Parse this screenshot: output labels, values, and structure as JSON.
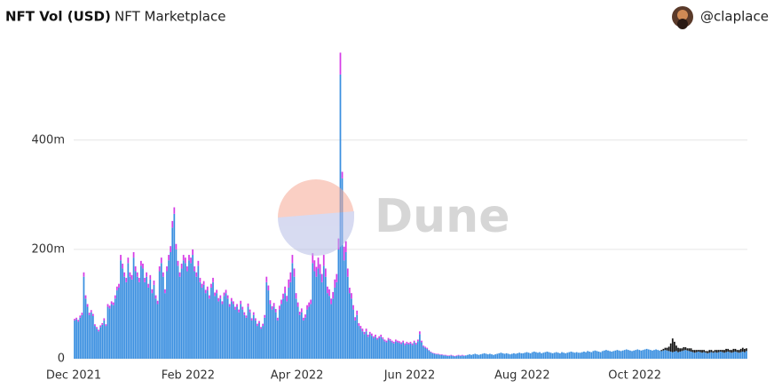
{
  "header": {
    "title": "NFT Vol (USD)",
    "subtitle": "NFT Marketplace",
    "user": "@claplace"
  },
  "chart_data": {
    "type": "bar",
    "stacked": true,
    "watermark": "Dune",
    "grid": true,
    "x": [
      0,
      1,
      2,
      3,
      4,
      5,
      6,
      7,
      8,
      9,
      10,
      11,
      12,
      13,
      14,
      15,
      16,
      17,
      18,
      19,
      20,
      21,
      22,
      23,
      24,
      25,
      26,
      27,
      28,
      29,
      30,
      31,
      32,
      33,
      34,
      35,
      36,
      37,
      38,
      39,
      40,
      41,
      42,
      43,
      44,
      45,
      46,
      47,
      48,
      49,
      50,
      51,
      52,
      53,
      54,
      55,
      56,
      57,
      58,
      59,
      60,
      61,
      62,
      63,
      64,
      65,
      66,
      67,
      68,
      69,
      70,
      71,
      72,
      73,
      74,
      75,
      76,
      77,
      78,
      79,
      80,
      81,
      82,
      83,
      84,
      85,
      86,
      87,
      88,
      89,
      90,
      91,
      92,
      93,
      94,
      95,
      96,
      97,
      98,
      99,
      100,
      101,
      102,
      103,
      104,
      105,
      106,
      107,
      108,
      109,
      110,
      111,
      112,
      113,
      114,
      115,
      116,
      117,
      118,
      119,
      120,
      121,
      122,
      123,
      124,
      125,
      126,
      127,
      128,
      129,
      130,
      131,
      132,
      133,
      134,
      135,
      136,
      137,
      138,
      139,
      140,
      141,
      142,
      143,
      144,
      145,
      146,
      147,
      148,
      149,
      150,
      151,
      152,
      153,
      154,
      155,
      156,
      157,
      158,
      159,
      160,
      161,
      162,
      163,
      164,
      165,
      166,
      167,
      168,
      169,
      170,
      171,
      172,
      173,
      174,
      175,
      176,
      177,
      178,
      179,
      180,
      181,
      182,
      183,
      184,
      185,
      186,
      187,
      188,
      189,
      190,
      191,
      192,
      193,
      194,
      195,
      196,
      197,
      198,
      199,
      200,
      201,
      202,
      203,
      204,
      205,
      206,
      207,
      208,
      209,
      210,
      211,
      212,
      213,
      214,
      215,
      216,
      217,
      218,
      219,
      220,
      221,
      222,
      223,
      224,
      225,
      226,
      227,
      228,
      229,
      230,
      231,
      232,
      233,
      234,
      235,
      236,
      237,
      238,
      239,
      240,
      241,
      242,
      243,
      244,
      245,
      246,
      247,
      248,
      249,
      250,
      251,
      252,
      253,
      254,
      255,
      256,
      257,
      258,
      259,
      260,
      261,
      262,
      263,
      264,
      265,
      266,
      267,
      268,
      269,
      270,
      271,
      272,
      273,
      274,
      275,
      276,
      277,
      278,
      279,
      280,
      281,
      282,
      283,
      284,
      285,
      286,
      287,
      288,
      289,
      290,
      291,
      292,
      293,
      294,
      295,
      296,
      297,
      298,
      299,
      300,
      301,
      302,
      303,
      304,
      305,
      306,
      307,
      308,
      309,
      310,
      311,
      312,
      313,
      314,
      315,
      316,
      317,
      318,
      319,
      320,
      321,
      322,
      323,
      324,
      325,
      326,
      327,
      328,
      329,
      330,
      331,
      332,
      333,
      334,
      335,
      336,
      337,
      338,
      339,
      340,
      341,
      342,
      343,
      344,
      345,
      346,
      347,
      348,
      349,
      350,
      351,
      352,
      353,
      354,
      355,
      356,
      357,
      358,
      359,
      360,
      361,
      362,
      363,
      364
    ],
    "xlim": [
      0,
      365
    ],
    "xticks": [
      {
        "value": 0,
        "label": "Dec 2021"
      },
      {
        "value": 62,
        "label": "Feb 2022"
      },
      {
        "value": 121,
        "label": "Apr 2022"
      },
      {
        "value": 182,
        "label": "Jun 2022"
      },
      {
        "value": 243,
        "label": "Aug 2022"
      },
      {
        "value": 304,
        "label": "Oct 2022"
      }
    ],
    "ylim": [
      0,
      580
    ],
    "yticks": [
      0,
      {
        "value": 200,
        "label": "200m"
      },
      {
        "value": 400,
        "label": "400m"
      }
    ],
    "series": [
      {
        "color": "#3a8fe0",
        "values": [
          70,
          72,
          68,
          75,
          80,
          150,
          110,
          95,
          80,
          85,
          78,
          60,
          55,
          50,
          58,
          62,
          70,
          60,
          95,
          92,
          100,
          98,
          110,
          125,
          130,
          180,
          165,
          150,
          140,
          175,
          150,
          145,
          185,
          160,
          150,
          140,
          170,
          165,
          140,
          150,
          130,
          145,
          120,
          135,
          110,
          100,
          160,
          175,
          150,
          120,
          160,
          180,
          195,
          240,
          265,
          200,
          170,
          150,
          165,
          180,
          175,
          160,
          180,
          175,
          190,
          160,
          150,
          170,
          140,
          130,
          135,
          120,
          125,
          110,
          130,
          140,
          115,
          120,
          105,
          110,
          100,
          115,
          120,
          110,
          95,
          105,
          100,
          90,
          95,
          85,
          100,
          90,
          80,
          75,
          95,
          85,
          70,
          80,
          70,
          60,
          65,
          55,
          60,
          75,
          140,
          125,
          100,
          90,
          95,
          85,
          70,
          90,
          100,
          110,
          120,
          105,
          130,
          140,
          175,
          150,
          110,
          95,
          80,
          85,
          70,
          75,
          90,
          95,
          100,
          175,
          160,
          150,
          165,
          155,
          140,
          170,
          150,
          120,
          115,
          100,
          110,
          130,
          140,
          200,
          520,
          330,
          180,
          195,
          150,
          120,
          110,
          90,
          70,
          80,
          60,
          55,
          50,
          45,
          50,
          40,
          45,
          42,
          38,
          40,
          35,
          38,
          40,
          36,
          32,
          30,
          35,
          33,
          30,
          28,
          32,
          30,
          29,
          27,
          30,
          25,
          28,
          26,
          28,
          25,
          30,
          26,
          32,
          45,
          30,
          22,
          20,
          18,
          15,
          12,
          10,
          9,
          8,
          8,
          7,
          7,
          6,
          6,
          5,
          5,
          6,
          5,
          4,
          5,
          6,
          5,
          6,
          5,
          6,
          7,
          8,
          7,
          8,
          9,
          8,
          7,
          8,
          9,
          10,
          9,
          8,
          9,
          8,
          7,
          8,
          9,
          10,
          11,
          10,
          9,
          10,
          9,
          8,
          9,
          10,
          9,
          10,
          11,
          10,
          10,
          11,
          12,
          11,
          10,
          12,
          13,
          12,
          11,
          12,
          10,
          11,
          12,
          13,
          12,
          11,
          10,
          11,
          12,
          11,
          10,
          12,
          11,
          10,
          11,
          12,
          13,
          12,
          11,
          12,
          11,
          11,
          12,
          13,
          12,
          14,
          13,
          12,
          14,
          15,
          14,
          13,
          12,
          14,
          15,
          16,
          15,
          14,
          13,
          14,
          15,
          16,
          15,
          14,
          15,
          16,
          17,
          16,
          15,
          14,
          15,
          16,
          17,
          16,
          15,
          16,
          17,
          18,
          17,
          16,
          15,
          16,
          17,
          16,
          15,
          14,
          15,
          16,
          15,
          14,
          13,
          12,
          13,
          14,
          12,
          13,
          14,
          15,
          16,
          15,
          14,
          13,
          12,
          11,
          12,
          13,
          12,
          11,
          12,
          11,
          10,
          11,
          12,
          11,
          12,
          11,
          12,
          13,
          12,
          11,
          12,
          13,
          12,
          11,
          12,
          13,
          12,
          11,
          12,
          13,
          12,
          14
        ]
      },
      {
        "color": "#d63ce6",
        "values": [
          3,
          3,
          3,
          4,
          4,
          8,
          6,
          5,
          4,
          4,
          4,
          3,
          3,
          3,
          3,
          3,
          4,
          3,
          5,
          5,
          5,
          5,
          6,
          7,
          7,
          10,
          9,
          8,
          8,
          10,
          8,
          8,
          10,
          9,
          8,
          8,
          9,
          9,
          8,
          8,
          7,
          8,
          7,
          8,
          6,
          6,
          9,
          10,
          8,
          7,
          9,
          10,
          11,
          12,
          12,
          10,
          9,
          8,
          9,
          10,
          10,
          9,
          10,
          10,
          10,
          9,
          8,
          9,
          8,
          7,
          7,
          6,
          7,
          6,
          7,
          8,
          6,
          6,
          6,
          6,
          5,
          6,
          6,
          6,
          5,
          6,
          5,
          5,
          5,
          5,
          6,
          5,
          5,
          4,
          6,
          5,
          4,
          5,
          4,
          4,
          4,
          3,
          4,
          5,
          10,
          9,
          7,
          6,
          7,
          6,
          5,
          7,
          8,
          9,
          12,
          10,
          15,
          18,
          15,
          15,
          10,
          8,
          6,
          7,
          5,
          6,
          8,
          8,
          8,
          18,
          20,
          18,
          20,
          18,
          15,
          20,
          15,
          12,
          12,
          10,
          12,
          15,
          15,
          20,
          40,
          12,
          25,
          20,
          15,
          10,
          10,
          8,
          6,
          8,
          5,
          5,
          5,
          4,
          5,
          4,
          4,
          4,
          3,
          4,
          3,
          3,
          4,
          3,
          3,
          3,
          3,
          3,
          3,
          3,
          3,
          3,
          3,
          3,
          3,
          3,
          3,
          3,
          3,
          3,
          3,
          3,
          3,
          5,
          3,
          2,
          2,
          2,
          1,
          1,
          1,
          1,
          1,
          1,
          1,
          1,
          1,
          1,
          1,
          1,
          1,
          1,
          1,
          1,
          1,
          1,
          1,
          1,
          0,
          0,
          0,
          0,
          0,
          0,
          0,
          0,
          0,
          0,
          0,
          0,
          0,
          0,
          0,
          0,
          0,
          0,
          0,
          0,
          0,
          0,
          0,
          0,
          0,
          0,
          0,
          0,
          0,
          0,
          0,
          0,
          0,
          0,
          0,
          0,
          0,
          0,
          0,
          0,
          0,
          0,
          0,
          0,
          0,
          0,
          0,
          0,
          0,
          0,
          0,
          0,
          0,
          0,
          0,
          0,
          0,
          0,
          0,
          0,
          0,
          0,
          0,
          0,
          0,
          0,
          0,
          0,
          0,
          0,
          0,
          0,
          0,
          0,
          0,
          0,
          0,
          0,
          0,
          0,
          0,
          0,
          0,
          0,
          0,
          0,
          0,
          0,
          0,
          0,
          0,
          0,
          0,
          0,
          0,
          0,
          0,
          0,
          0,
          0,
          0,
          0,
          0,
          0,
          0,
          0,
          0,
          0,
          0,
          0,
          0,
          0,
          0,
          0,
          0,
          0,
          0,
          0,
          0,
          0,
          0,
          0,
          0,
          0,
          0,
          0,
          0,
          0,
          0,
          0,
          0,
          0,
          0,
          0,
          0,
          0,
          0,
          0,
          0,
          0,
          0,
          0,
          0,
          0,
          0,
          0,
          0,
          0,
          0,
          0,
          0,
          0,
          0
        ]
      },
      {
        "color": "#151515",
        "values": [
          0,
          0,
          0,
          0,
          0,
          0,
          0,
          0,
          0,
          0,
          0,
          0,
          0,
          0,
          0,
          0,
          0,
          0,
          0,
          0,
          0,
          0,
          0,
          0,
          0,
          0,
          0,
          0,
          0,
          0,
          0,
          0,
          0,
          0,
          0,
          0,
          0,
          0,
          0,
          0,
          0,
          0,
          0,
          0,
          0,
          0,
          0,
          0,
          0,
          0,
          0,
          0,
          0,
          0,
          0,
          0,
          0,
          0,
          0,
          0,
          0,
          0,
          0,
          0,
          0,
          0,
          0,
          0,
          0,
          0,
          0,
          0,
          0,
          0,
          0,
          0,
          0,
          0,
          0,
          0,
          0,
          0,
          0,
          0,
          0,
          0,
          0,
          0,
          0,
          0,
          0,
          0,
          0,
          0,
          0,
          0,
          0,
          0,
          0,
          0,
          0,
          0,
          0,
          0,
          0,
          0,
          0,
          0,
          0,
          0,
          0,
          0,
          0,
          0,
          0,
          0,
          0,
          0,
          0,
          0,
          0,
          0,
          0,
          0,
          0,
          0,
          0,
          0,
          0,
          0,
          0,
          0,
          0,
          0,
          0,
          0,
          0,
          0,
          0,
          0,
          0,
          0,
          0,
          0,
          0,
          0,
          0,
          0,
          0,
          0,
          0,
          0,
          0,
          0,
          0,
          0,
          0,
          0,
          0,
          0,
          0,
          0,
          0,
          0,
          0,
          0,
          0,
          0,
          0,
          0,
          0,
          0,
          0,
          0,
          0,
          0,
          0,
          0,
          0,
          0,
          0,
          0,
          0,
          0,
          0,
          0,
          0,
          0,
          0,
          0,
          0,
          0,
          0,
          0,
          0,
          0,
          0,
          0,
          0,
          0,
          0,
          0,
          0,
          0,
          0,
          0,
          0,
          0,
          0,
          0,
          0,
          0,
          0,
          0,
          0,
          0,
          0,
          0,
          0,
          0,
          0,
          0,
          0,
          0,
          0,
          0,
          0,
          0,
          0,
          0,
          0,
          0,
          0,
          0,
          0,
          0,
          0,
          0,
          0,
          0,
          0,
          0,
          0,
          0,
          0,
          0,
          0,
          0,
          0,
          0,
          0,
          0,
          0,
          0,
          0,
          0,
          0,
          0,
          0,
          0,
          0,
          0,
          0,
          0,
          0,
          0,
          0,
          0,
          0,
          0,
          0,
          0,
          0,
          0,
          0,
          0,
          0,
          0,
          0,
          0,
          0,
          0,
          0,
          0,
          0,
          0,
          0,
          0,
          0,
          0,
          0,
          0,
          0,
          0,
          0,
          0,
          0,
          0,
          0,
          0,
          0,
          0,
          0,
          0,
          0,
          0,
          0,
          0,
          0,
          0,
          0,
          0,
          0,
          0,
          0,
          0,
          0,
          0,
          2,
          3,
          4,
          5,
          8,
          15,
          25,
          18,
          10,
          8,
          6,
          5,
          6,
          5,
          4,
          5,
          6,
          4,
          5,
          4,
          3,
          4,
          5,
          4,
          3,
          4,
          5,
          4,
          3,
          4,
          5,
          4,
          3,
          4,
          5,
          6,
          5,
          4,
          5,
          6,
          5,
          4,
          5,
          6,
          7,
          6,
          5
        ]
      }
    ]
  }
}
